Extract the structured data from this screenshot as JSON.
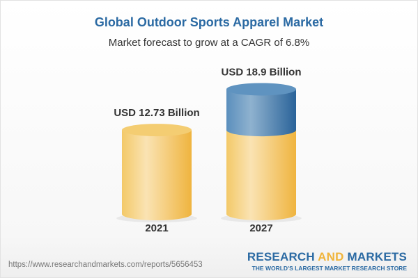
{
  "title": "Global Outdoor Sports Apparel Market",
  "subtitle": "Market forecast to grow at a CAGR of 6.8%",
  "chart_data": {
    "type": "bar",
    "style": "3d-cylinder",
    "categories": [
      "2021",
      "2027"
    ],
    "values": [
      12.73,
      18.9
    ],
    "data_labels": [
      "USD 12.73 Billion",
      "USD 18.9 Billion"
    ],
    "colors": {
      "base": "#f2c35e",
      "growth": "#3f7bb0"
    },
    "title": "Global Outdoor Sports Apparel Market",
    "xlabel": "",
    "ylabel": "",
    "grid": false
  },
  "footer": {
    "url": "https://www.researchandmarkets.com/reports/5656453",
    "logo_part1": "RESEARCH ",
    "logo_part2": "AND",
    "logo_part3": " MARKETS",
    "tagline": "THE WORLD'S LARGEST MARKET RESEARCH STORE"
  }
}
